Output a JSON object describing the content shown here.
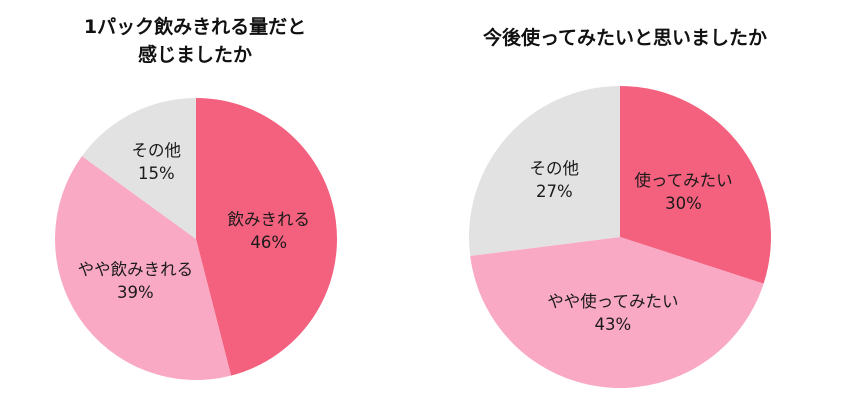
{
  "page": {
    "background": "#ffffff"
  },
  "chart_data": [
    {
      "type": "pie",
      "title": "1パック飲みきれる量だと感じましたか",
      "title_display": "1パック飲みきれる量だと\n感じましたか",
      "labels": [
        "飲みきれる",
        "やや飲みきれる",
        "その他"
      ],
      "values": [
        46,
        39,
        15
      ],
      "value_suffix": "%",
      "colors": [
        "#F4617E",
        "#F9A9C4",
        "#E2E2E2"
      ],
      "label_color": "#1a1a1a",
      "start_angle_deg": 0,
      "direction": "clockwise",
      "legend": "none",
      "label_radius_ratios": [
        0.52,
        0.52,
        0.62
      ]
    },
    {
      "type": "pie",
      "title": "今後使ってみたいと思いましたか",
      "title_display": "今後使ってみたいと思いましたか",
      "labels": [
        "使ってみたい",
        "やや使ってみたい",
        "その他"
      ],
      "values": [
        30,
        43,
        27
      ],
      "value_suffix": "%",
      "colors": [
        "#F4617E",
        "#F9A9C4",
        "#E2E2E2"
      ],
      "label_color": "#1a1a1a",
      "start_angle_deg": 0,
      "direction": "clockwise",
      "legend": "none",
      "label_radius_ratios": [
        0.52,
        0.5,
        0.58
      ]
    }
  ]
}
